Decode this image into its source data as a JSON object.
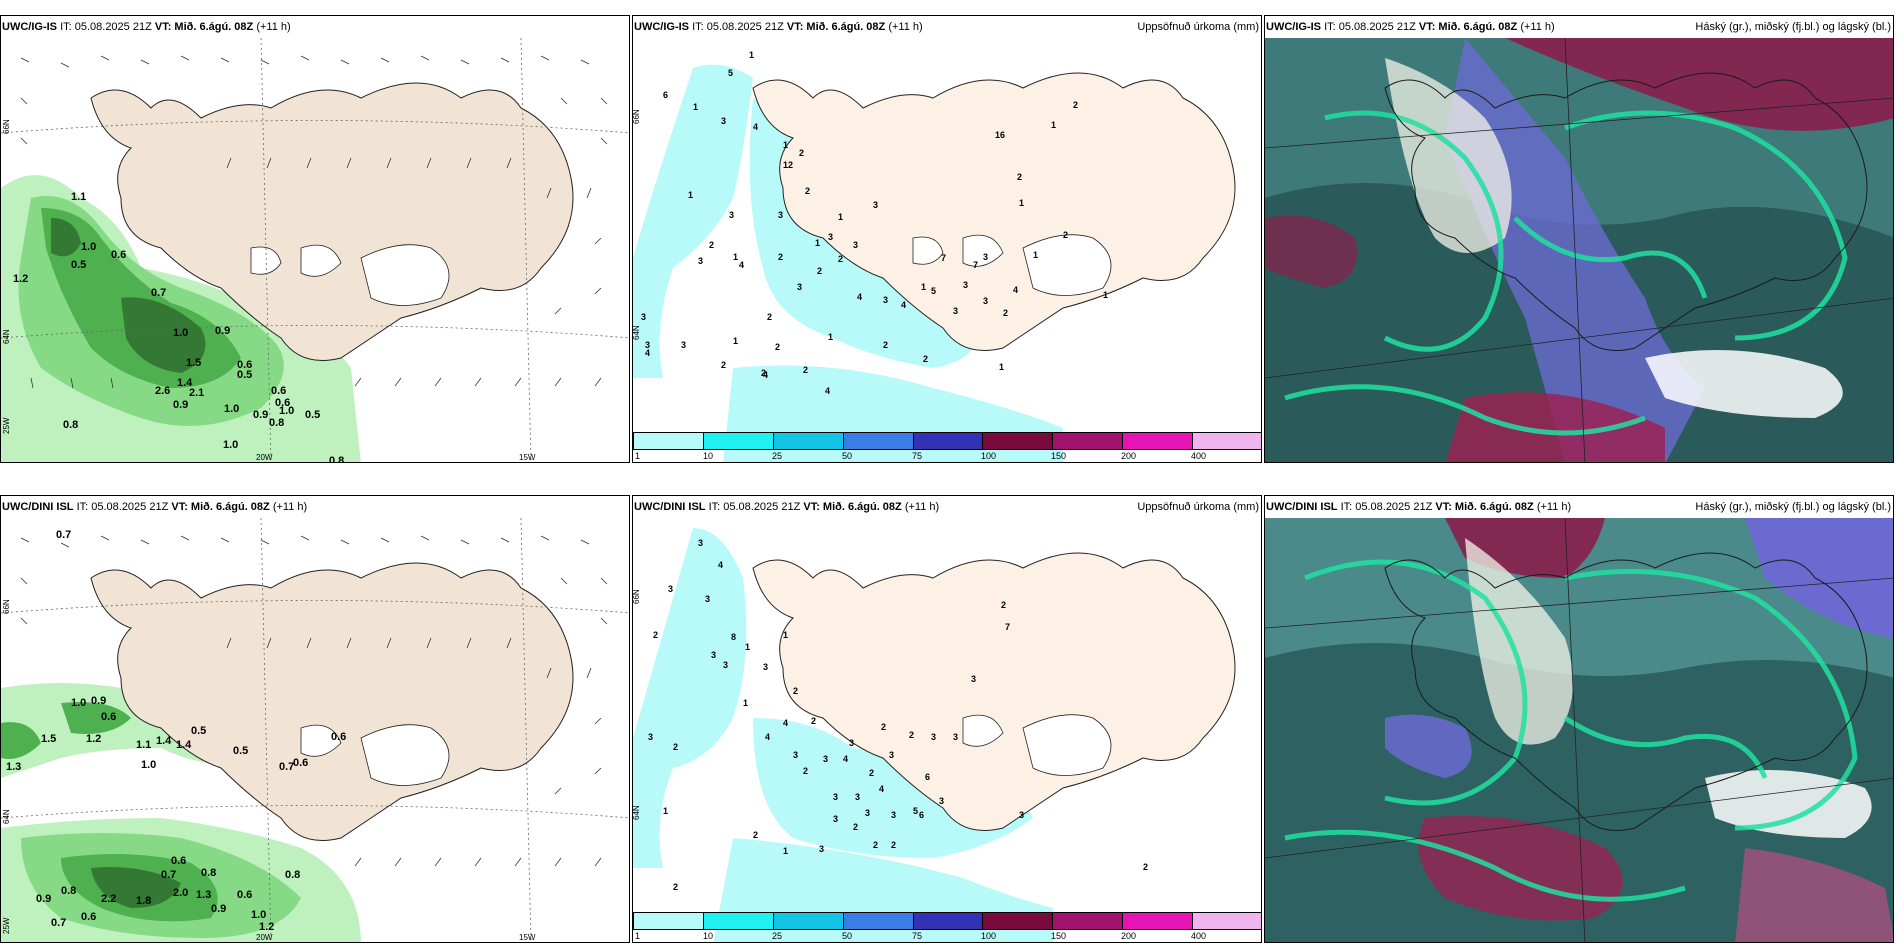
{
  "rows": [
    {
      "model": "UWC/IG-IS",
      "run_label": "IT: 05.08.2025 21Z",
      "vt_label": "VT: Mið. 6.ágú. 08Z",
      "lead": "(+11 h)",
      "wind_values": [
        "1.1",
        "1.0",
        "0.6",
        "0.5",
        "1.2",
        "0.7",
        "1.0",
        "0.9",
        "1.5",
        "0.6",
        "0.5",
        "2.6",
        "1.4",
        "0.9",
        "2.1",
        "0.6",
        "1.0",
        "0.9",
        "0.5",
        "0.8",
        "0.8",
        "1.0",
        "0.8",
        "0.6",
        "1.0"
      ],
      "precip_values": [
        "1",
        "5",
        "6",
        "1",
        "3",
        "4",
        "1",
        "1",
        "12",
        "2",
        "2",
        "3",
        "3",
        "3",
        "2",
        "1",
        "2",
        "4",
        "1",
        "3",
        "3",
        "2",
        "2",
        "3",
        "2",
        "3",
        "1",
        "2",
        "3",
        "2",
        "3",
        "3",
        "1",
        "4",
        "2",
        "4",
        "1",
        "2",
        "4",
        "1",
        "3",
        "4",
        "4",
        "7",
        "16",
        "2",
        "1",
        "2",
        "1",
        "2",
        "1",
        "3",
        "7",
        "3",
        "5",
        "3",
        "2",
        "3",
        "1",
        "4",
        "2",
        "2",
        "1"
      ]
    },
    {
      "model": "UWC/DINI ISL",
      "run_label": "IT: 05.08.2025 21Z",
      "vt_label": "VT: Mið. 6.ágú. 08Z",
      "lead": "(+11 h)",
      "wind_values": [
        "0.7",
        "1.0",
        "0.9",
        "0.6",
        "1.3",
        "1.5",
        "1.2",
        "1.1",
        "1.4",
        "1.4",
        "0.5",
        "1.0",
        "0.5",
        "0.7",
        "0.6",
        "0.6",
        "0.6",
        "0.7",
        "0.8",
        "0.9",
        "0.8",
        "2.2",
        "1.8",
        "2.0",
        "1.3",
        "0.9",
        "0.7",
        "0.6",
        "1.0",
        "1.2",
        "0.6",
        "0.8"
      ],
      "precip_values": [
        "3",
        "4",
        "3",
        "3",
        "2",
        "8",
        "1",
        "3",
        "3",
        "3",
        "2",
        "1",
        "3",
        "2",
        "4",
        "4",
        "2",
        "1",
        "3",
        "2",
        "3",
        "4",
        "3",
        "3",
        "3",
        "2",
        "2",
        "3",
        "3",
        "6",
        "3",
        "5",
        "3",
        "3",
        "4",
        "3",
        "2",
        "2",
        "1",
        "3",
        "2",
        "2",
        "1",
        "2",
        "6",
        "7",
        "2",
        "3",
        "3",
        "2",
        "3",
        "2"
      ]
    }
  ],
  "precip_title": "Uppsöfnuð úrkoma (mm)",
  "cloud_title": "Háský (gr.), miðský (fj.bl.) og lágský (bl.)",
  "colorbar": {
    "labels": [
      "1",
      "10",
      "25",
      "50",
      "75",
      "100",
      "150",
      "200",
      "400"
    ],
    "colors": [
      "#b8fafa",
      "#21f0f0",
      "#14c4e6",
      "#3c7ce6",
      "#3232b4",
      "#780a3c",
      "#a0146e",
      "#e614b4",
      "#f0b4f0"
    ]
  },
  "axis_labels": {
    "lat66": "66N",
    "lat64": "64N",
    "lon25": "25W",
    "lon20": "20W",
    "lon15": "15W",
    "lat66p": "66N",
    "lat64p": "64N"
  }
}
